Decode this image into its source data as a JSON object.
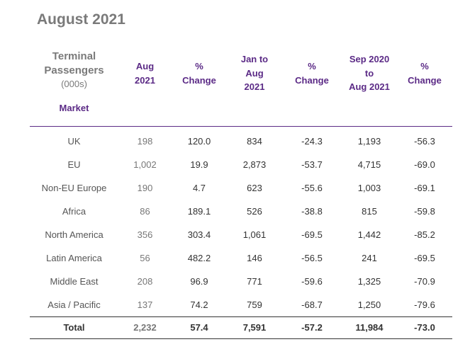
{
  "title": "August 2021",
  "header": {
    "label_line1": "Terminal",
    "label_line2": "Passengers",
    "label_unit": "(000s)",
    "market": "Market",
    "col1_l1": "Aug",
    "col1_l2": "2021",
    "col2_l1": "%",
    "col2_l2": "Change",
    "col3_l1": "Jan to",
    "col3_l2": "Aug",
    "col3_l3": "2021",
    "col4_l1": "%",
    "col4_l2": "Change",
    "col5_l1": "Sep 2020",
    "col5_l2": "to",
    "col5_l3": "Aug 2021",
    "col6_l1": "%",
    "col6_l2": "Change"
  },
  "rows": [
    {
      "market": "UK",
      "aug": "198",
      "aug_chg": "120.0",
      "ytd": "834",
      "ytd_chg": "-24.3",
      "r12": "1,193",
      "r12_chg": "-56.3"
    },
    {
      "market": "EU",
      "aug": "1,002",
      "aug_chg": "19.9",
      "ytd": "2,873",
      "ytd_chg": "-53.7",
      "r12": "4,715",
      "r12_chg": "-69.0"
    },
    {
      "market": "Non-EU Europe",
      "aug": "190",
      "aug_chg": "4.7",
      "ytd": "623",
      "ytd_chg": "-55.6",
      "r12": "1,003",
      "r12_chg": "-69.1"
    },
    {
      "market": "Africa",
      "aug": "86",
      "aug_chg": "189.1",
      "ytd": "526",
      "ytd_chg": "-38.8",
      "r12": "815",
      "r12_chg": "-59.8"
    },
    {
      "market": "North America",
      "aug": "356",
      "aug_chg": "303.4",
      "ytd": "1,061",
      "ytd_chg": "-69.5",
      "r12": "1,442",
      "r12_chg": "-85.2"
    },
    {
      "market": "Latin America",
      "aug": "56",
      "aug_chg": "482.2",
      "ytd": "146",
      "ytd_chg": "-56.5",
      "r12": "241",
      "r12_chg": "-69.5"
    },
    {
      "market": "Middle East",
      "aug": "208",
      "aug_chg": "96.9",
      "ytd": "771",
      "ytd_chg": "-59.6",
      "r12": "1,325",
      "r12_chg": "-70.9"
    },
    {
      "market": "Asia / Pacific",
      "aug": "137",
      "aug_chg": "74.2",
      "ytd": "759",
      "ytd_chg": "-68.7",
      "r12": "1,250",
      "r12_chg": "-79.6"
    }
  ],
  "total": {
    "market": "Total",
    "aug": "2,232",
    "aug_chg": "57.4",
    "ytd": "7,591",
    "ytd_chg": "-57.2",
    "r12": "11,984",
    "r12_chg": "-73.0"
  },
  "colors": {
    "accent": "#5b2a86",
    "title": "#7a7a7a"
  }
}
